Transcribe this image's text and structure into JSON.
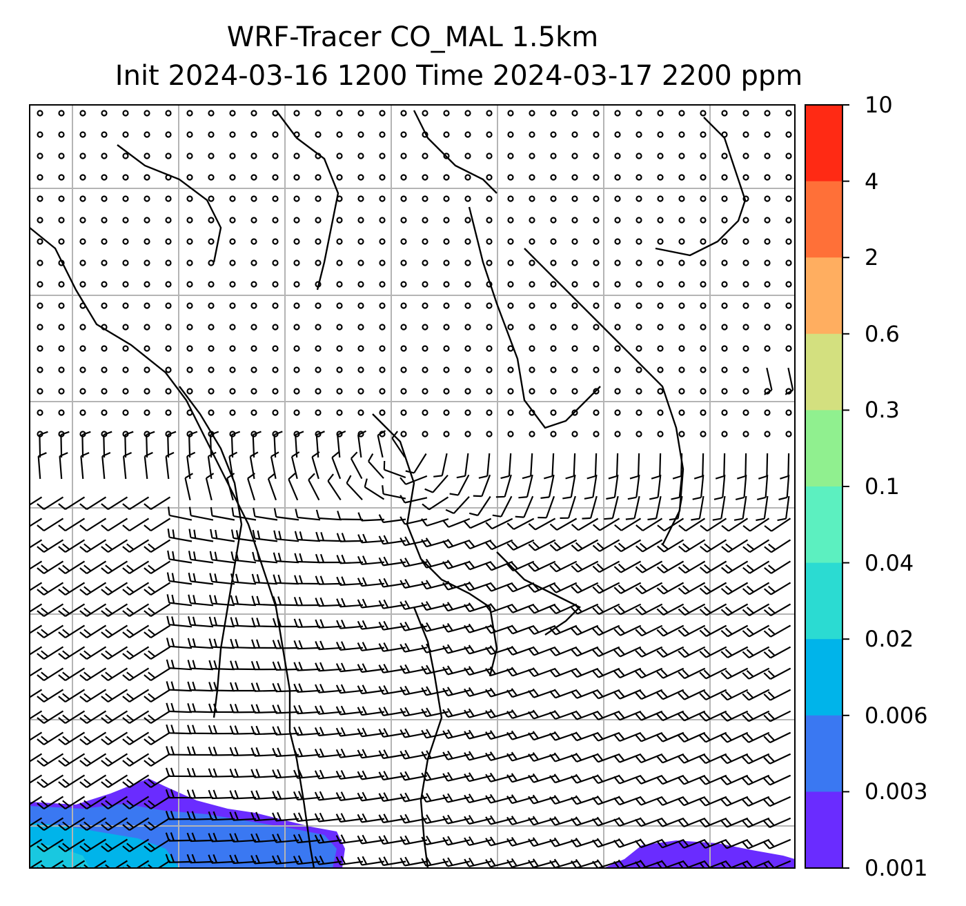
{
  "title": {
    "line1": "WRF-Tracer CO_MAL 1.5km",
    "line2": "Init 2024-03-16 1200 Time 2024-03-17 2200 ppm"
  },
  "colorbar": {
    "ticks": [
      "10",
      "4",
      "2",
      "0.6",
      "0.3",
      "0.1",
      "0.04",
      "0.02",
      "0.006",
      "0.003",
      "0.001"
    ],
    "colors": [
      "#ff2a14",
      "#ff7038",
      "#ffae60",
      "#d3e07f",
      "#90f08f",
      "#5cf0c0",
      "#2bdbd2",
      "#00b4ea",
      "#3a78f2",
      "#6a2cff"
    ]
  },
  "map": {
    "field": "CO_MAL tracer concentration (ppm) with wind barbs",
    "calm_wind_marker": "circle",
    "gridlines": true
  }
}
